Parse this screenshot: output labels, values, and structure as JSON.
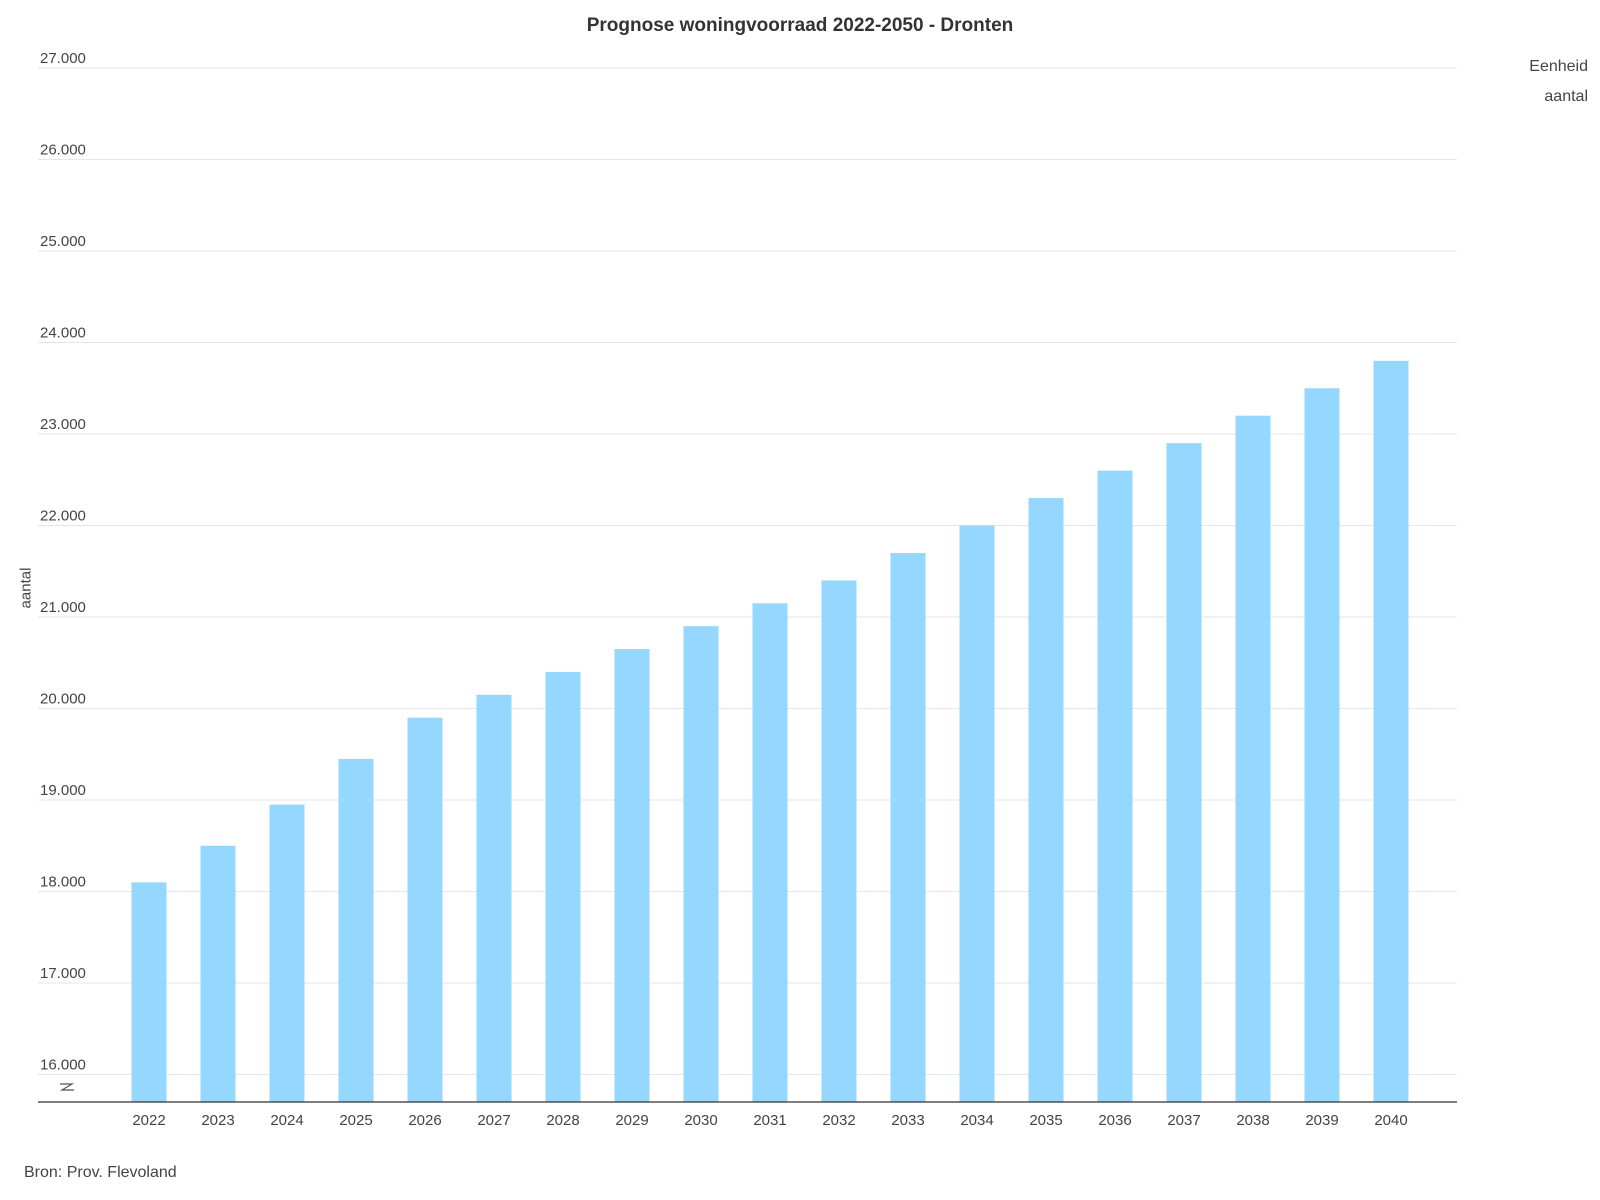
{
  "chart_data": {
    "type": "bar",
    "title": "Prognose woningvoorraad 2022-2050 - Dronten",
    "ylabel": "aantal",
    "xlabel": "",
    "categories": [
      "2022",
      "2023",
      "2024",
      "2025",
      "2026",
      "2027",
      "2028",
      "2029",
      "2030",
      "2031",
      "2032",
      "2033",
      "2034",
      "2035",
      "2036",
      "2037",
      "2038",
      "2039",
      "2040"
    ],
    "series": [
      {
        "name": "aantal",
        "values": [
          18100,
          18500,
          18950,
          19450,
          19900,
          20150,
          20400,
          20650,
          20900,
          21150,
          21400,
          21700,
          22000,
          22300,
          22600,
          22900,
          23200,
          23500,
          23800
        ]
      }
    ],
    "ylim": [
      15700,
      27000
    ],
    "yticks": [
      16000,
      17000,
      18000,
      19000,
      20000,
      21000,
      22000,
      23000,
      24000,
      25000,
      26000,
      27000
    ],
    "ytick_labels": [
      "16.000",
      "17.000",
      "18.000",
      "19.000",
      "20.000",
      "21.000",
      "22.000",
      "23.000",
      "24.000",
      "25.000",
      "26.000",
      "27.000"
    ],
    "grid": true,
    "axis_break": true,
    "legend": {
      "placement": "top-right",
      "title": "Eenheid",
      "entries": [
        "aantal"
      ]
    },
    "bar_color": "#95d7fe",
    "source": "Bron: Prov. Flevoland"
  }
}
